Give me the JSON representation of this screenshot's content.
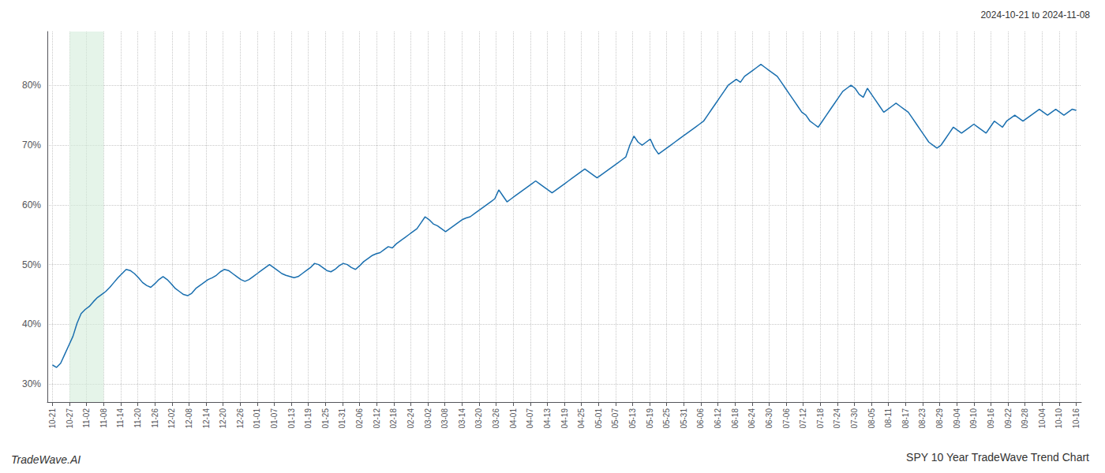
{
  "chart_data": {
    "type": "line",
    "title": "SPY 10 Year TradeWave Trend Chart",
    "subtitle": "2024-10-21 to 2024-11-08",
    "annotations": [
      "TradeWave.AI"
    ],
    "color": "#1a6faf",
    "grid": true,
    "xlim": [
      -0.3,
      60.3
    ],
    "xticks": [
      {
        "value": 0,
        "label": "10-21"
      },
      {
        "value": 1,
        "label": "10-27"
      },
      {
        "value": 2,
        "label": "11-02"
      },
      {
        "value": 3,
        "label": "11-08"
      },
      {
        "value": 4,
        "label": "11-14"
      },
      {
        "value": 5,
        "label": "11-20"
      },
      {
        "value": 6,
        "label": "11-26"
      },
      {
        "value": 7,
        "label": "12-02"
      },
      {
        "value": 8,
        "label": "12-08"
      },
      {
        "value": 9,
        "label": "12-14"
      },
      {
        "value": 10,
        "label": "12-20"
      },
      {
        "value": 11,
        "label": "12-26"
      },
      {
        "value": 12,
        "label": "01-01"
      },
      {
        "value": 13,
        "label": "01-07"
      },
      {
        "value": 14,
        "label": "01-13"
      },
      {
        "value": 15,
        "label": "01-19"
      },
      {
        "value": 16,
        "label": "01-25"
      },
      {
        "value": 17,
        "label": "01-31"
      },
      {
        "value": 18,
        "label": "02-06"
      },
      {
        "value": 19,
        "label": "02-12"
      },
      {
        "value": 20,
        "label": "02-18"
      },
      {
        "value": 21,
        "label": "02-24"
      },
      {
        "value": 22,
        "label": "03-02"
      },
      {
        "value": 23,
        "label": "03-08"
      },
      {
        "value": 24,
        "label": "03-14"
      },
      {
        "value": 25,
        "label": "03-20"
      },
      {
        "value": 26,
        "label": "03-26"
      },
      {
        "value": 27,
        "label": "04-01"
      },
      {
        "value": 28,
        "label": "04-07"
      },
      {
        "value": 29,
        "label": "04-13"
      },
      {
        "value": 30,
        "label": "04-19"
      },
      {
        "value": 31,
        "label": "04-25"
      },
      {
        "value": 32,
        "label": "05-01"
      },
      {
        "value": 33,
        "label": "05-07"
      },
      {
        "value": 34,
        "label": "05-13"
      },
      {
        "value": 35,
        "label": "05-19"
      },
      {
        "value": 36,
        "label": "05-25"
      },
      {
        "value": 37,
        "label": "05-31"
      },
      {
        "value": 38,
        "label": "06-06"
      },
      {
        "value": 39,
        "label": "06-12"
      },
      {
        "value": 40,
        "label": "06-18"
      },
      {
        "value": 41,
        "label": "06-24"
      },
      {
        "value": 42,
        "label": "06-30"
      },
      {
        "value": 43,
        "label": "07-06"
      },
      {
        "value": 44,
        "label": "07-12"
      },
      {
        "value": 45,
        "label": "07-18"
      },
      {
        "value": 46,
        "label": "07-24"
      },
      {
        "value": 47,
        "label": "07-30"
      },
      {
        "value": 48,
        "label": "08-05"
      },
      {
        "value": 49,
        "label": "08-11"
      },
      {
        "value": 50,
        "label": "08-17"
      },
      {
        "value": 51,
        "label": "08-23"
      },
      {
        "value": 52,
        "label": "08-29"
      },
      {
        "value": 53,
        "label": "09-04"
      },
      {
        "value": 54,
        "label": "09-10"
      },
      {
        "value": 55,
        "label": "09-16"
      },
      {
        "value": 56,
        "label": "09-22"
      },
      {
        "value": 57,
        "label": "09-28"
      },
      {
        "value": 58,
        "label": "10-04"
      },
      {
        "value": 59,
        "label": "10-10"
      },
      {
        "value": 60,
        "label": "10-16"
      }
    ],
    "ylim": [
      27,
      89
    ],
    "yticks": [
      {
        "value": 30,
        "label": "30%"
      },
      {
        "value": 40,
        "label": "40%"
      },
      {
        "value": 50,
        "label": "50%"
      },
      {
        "value": 60,
        "label": "60%"
      },
      {
        "value": 70,
        "label": "70%"
      },
      {
        "value": 80,
        "label": "80%"
      }
    ],
    "shade": {
      "from": 1,
      "to": 3,
      "color": "#d4edda"
    },
    "x": [
      0,
      0.24,
      0.48,
      0.72,
      0.96,
      1.2,
      1.44,
      1.68,
      1.92,
      2.16,
      2.4,
      2.64,
      2.88,
      3.12,
      3.36,
      3.6,
      3.84,
      4.08,
      4.32,
      4.56,
      4.8,
      5.04,
      5.28,
      5.52,
      5.76,
      6,
      6.24,
      6.48,
      6.72,
      6.96,
      7.2,
      7.44,
      7.68,
      7.92,
      8.16,
      8.4,
      8.64,
      8.88,
      9.12,
      9.36,
      9.6,
      9.84,
      10.08,
      10.32,
      10.56,
      10.8,
      11.04,
      11.28,
      11.52,
      11.76,
      12,
      12.24,
      12.48,
      12.72,
      12.96,
      13.2,
      13.44,
      13.68,
      13.92,
      14.16,
      14.4,
      14.64,
      14.88,
      15.12,
      15.36,
      15.6,
      15.84,
      16.08,
      16.32,
      16.56,
      16.8,
      17.04,
      17.28,
      17.52,
      17.76,
      18,
      18.24,
      18.48,
      18.72,
      18.96,
      19.2,
      19.44,
      19.68,
      19.92,
      20.16,
      20.4,
      20.64,
      20.88,
      21.12,
      21.36,
      21.6,
      21.84,
      22.08,
      22.32,
      22.56,
      22.8,
      23.04,
      23.28,
      23.52,
      23.76,
      24,
      24.24,
      24.48,
      24.72,
      24.96,
      25.2,
      25.44,
      25.68,
      25.92,
      26.16,
      26.4,
      26.64,
      26.88,
      27.12,
      27.36,
      27.6,
      27.84,
      28.08,
      28.32,
      28.56,
      28.8,
      29.04,
      29.28,
      29.52,
      29.76,
      30,
      30.24,
      30.48,
      30.72,
      30.96,
      31.2,
      31.44,
      31.68,
      31.92,
      32.16,
      32.4,
      32.64,
      32.88,
      33.12,
      33.36,
      33.6,
      33.84,
      34.08,
      34.32,
      34.56,
      34.8,
      35.04,
      35.28,
      35.52,
      35.76,
      36,
      36.24,
      36.48,
      36.72,
      36.96,
      37.2,
      37.44,
      37.68,
      37.92,
      38.16,
      38.4,
      38.64,
      38.88,
      39.12,
      39.36,
      39.6,
      39.84,
      40.08,
      40.32,
      40.56,
      40.8,
      41.04,
      41.28,
      41.52,
      41.76,
      42,
      42.24,
      42.48,
      42.72,
      42.96,
      43.2,
      43.44,
      43.68,
      43.92,
      44.16,
      44.4,
      44.64,
      44.88,
      45.12,
      45.36,
      45.6,
      45.84,
      46.08,
      46.32,
      46.56,
      46.8,
      47.04,
      47.28,
      47.52,
      47.76,
      48,
      48.24,
      48.48,
      48.72,
      48.96,
      49.2,
      49.44,
      49.68,
      49.92,
      50.16,
      50.4,
      50.64,
      50.88,
      51.12,
      51.36,
      51.6,
      51.84,
      52.08,
      52.32,
      52.56,
      52.8,
      53.04,
      53.28,
      53.52,
      53.76,
      54,
      54.24,
      54.48,
      54.72,
      54.96,
      55.2,
      55.44,
      55.68,
      55.92,
      56.16,
      56.4,
      56.64,
      56.88,
      57.12,
      57.36,
      57.6,
      57.84,
      58.08,
      58.32,
      58.56,
      58.8,
      59.04,
      59.28,
      59.52,
      59.76,
      60
    ],
    "values": [
      33.2,
      32.8,
      33.5,
      35.0,
      36.5,
      38.0,
      40.2,
      41.8,
      42.5,
      43.0,
      43.8,
      44.5,
      45.0,
      45.5,
      46.2,
      47.0,
      47.8,
      48.5,
      49.2,
      49.0,
      48.5,
      47.8,
      47.0,
      46.5,
      46.2,
      46.8,
      47.5,
      48.0,
      47.5,
      46.8,
      46.0,
      45.5,
      45.0,
      44.8,
      45.2,
      46.0,
      46.5,
      47.0,
      47.5,
      47.8,
      48.2,
      48.8,
      49.2,
      49.0,
      48.5,
      48.0,
      47.5,
      47.2,
      47.5,
      48.0,
      48.5,
      49.0,
      49.5,
      50.0,
      49.5,
      49.0,
      48.5,
      48.2,
      48.0,
      47.8,
      48.0,
      48.5,
      49.0,
      49.5,
      50.2,
      50.0,
      49.5,
      49.0,
      48.8,
      49.2,
      49.8,
      50.2,
      50.0,
      49.5,
      49.2,
      49.8,
      50.5,
      51.0,
      51.5,
      51.8,
      52.0,
      52.5,
      53.0,
      52.8,
      53.5,
      54.0,
      54.5,
      55.0,
      55.5,
      56.0,
      57.0,
      58.0,
      57.5,
      56.8,
      56.5,
      56.0,
      55.5,
      56.0,
      56.5,
      57.0,
      57.5,
      57.8,
      58.0,
      58.5,
      59.0,
      59.5,
      60.0,
      60.5,
      61.0,
      62.5,
      61.5,
      60.5,
      61.0,
      61.5,
      62.0,
      62.5,
      63.0,
      63.5,
      64.0,
      63.5,
      63.0,
      62.5,
      62.0,
      62.5,
      63.0,
      63.5,
      64.0,
      64.5,
      65.0,
      65.5,
      66.0,
      65.5,
      65.0,
      64.5,
      65.0,
      65.5,
      66.0,
      66.5,
      67.0,
      67.5,
      68.0,
      70.0,
      71.5,
      70.5,
      70.0,
      70.5,
      71.0,
      69.5,
      68.5,
      69.0,
      69.5,
      70.0,
      70.5,
      71.0,
      71.5,
      72.0,
      72.5,
      73.0,
      73.5,
      74.0,
      75.0,
      76.0,
      77.0,
      78.0,
      79.0,
      80.0,
      80.5,
      81.0,
      80.5,
      81.5,
      82.0,
      82.5,
      83.0,
      83.5,
      83.0,
      82.5,
      82.0,
      81.5,
      80.5,
      79.5,
      78.5,
      77.5,
      76.5,
      75.5,
      75.0,
      74.0,
      73.5,
      73.0,
      74.0,
      75.0,
      76.0,
      77.0,
      78.0,
      79.0,
      79.5,
      80.0,
      79.5,
      78.5,
      78.0,
      79.5,
      78.5,
      77.5,
      76.5,
      75.5,
      76.0,
      76.5,
      77.0,
      76.5,
      76.0,
      75.5,
      74.5,
      73.5,
      72.5,
      71.5,
      70.5,
      70.0,
      69.5,
      70.0,
      71.0,
      72.0,
      73.0,
      72.5,
      72.0,
      72.5,
      73.0,
      73.5,
      73.0,
      72.5,
      72.0,
      73.0,
      74.0,
      73.5,
      73.0,
      74.0,
      74.5,
      75.0,
      74.5,
      74.0,
      74.5,
      75.0,
      75.5,
      76.0,
      75.5,
      75.0,
      75.5,
      76.0,
      75.5,
      75.0,
      75.5,
      76.0,
      75.8
    ]
  }
}
